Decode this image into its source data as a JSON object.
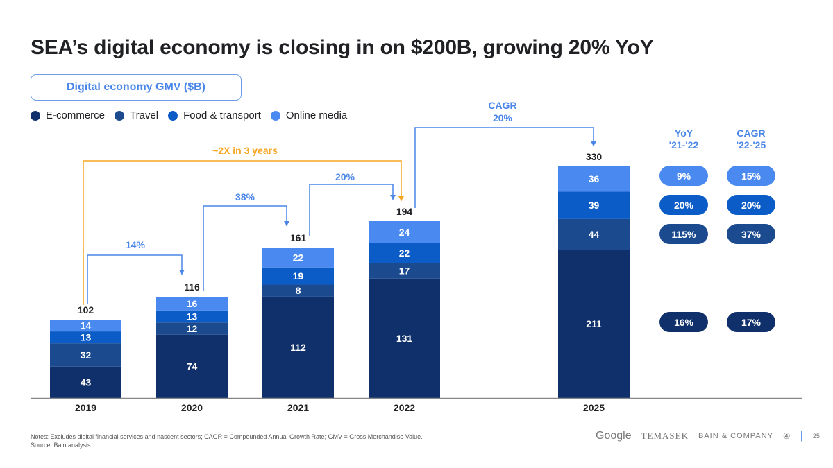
{
  "title": "SEA’s digital economy is closing in on $200B, growing 20% YoY",
  "subtitle": "Digital economy GMV ($B)",
  "chart_data": {
    "type": "bar",
    "stacked": true,
    "categories": [
      "2019",
      "2020",
      "2021",
      "2022",
      "2025"
    ],
    "series": [
      {
        "name": "E-commerce",
        "color": "#10306b",
        "values": [
          43,
          74,
          112,
          131,
          211
        ]
      },
      {
        "name": "Travel",
        "color": "#1b4a8f",
        "values": [
          32,
          12,
          8,
          17,
          44
        ]
      },
      {
        "name": "Food & transport",
        "color": "#0b5cc7",
        "values": [
          13,
          13,
          19,
          22,
          39
        ]
      },
      {
        "name": "Online media",
        "color": "#4a8af0",
        "values": [
          14,
          16,
          22,
          24,
          36
        ]
      }
    ],
    "totals": [
      "102",
      "116",
      "161",
      "194",
      "330"
    ],
    "legend_position": "top-left",
    "grid": false,
    "annotations": [
      {
        "label": "14%",
        "from": "2019",
        "to": "2020"
      },
      {
        "label": "38%",
        "from": "2020",
        "to": "2021"
      },
      {
        "label": "20%",
        "from": "2021",
        "to": "2022"
      },
      {
        "label": "~2X in 3 years",
        "from": "2019",
        "to": "2022",
        "color": "#f5a623"
      },
      {
        "label_line1": "CAGR",
        "label_line2": "20%",
        "from": "2022",
        "to": "2025"
      }
    ]
  },
  "growth_table": {
    "yoy_header": [
      "YoY",
      "'21-'22"
    ],
    "cagr_header": [
      "CAGR",
      "'22-'25"
    ],
    "rows": [
      {
        "segment": "Online media",
        "yoy": "9%",
        "cagr": "15%",
        "color": "#4a8af0"
      },
      {
        "segment": "Food & transport",
        "yoy": "20%",
        "cagr": "20%",
        "color": "#0b5cc7"
      },
      {
        "segment": "Travel",
        "yoy": "115%",
        "cagr": "37%",
        "color": "#1b4a8f"
      },
      {
        "segment": "E-commerce",
        "yoy": "16%",
        "cagr": "17%",
        "color": "#10306b"
      }
    ]
  },
  "footer": {
    "notes": "Notes: Excludes digital financial services and nascent sectors; CAGR = Compounded Annual Growth Rate; GMV = Gross Merchandise Value.",
    "source": "Source: Bain analysis",
    "logos": [
      "Google",
      "TEMASEK",
      "BAIN & COMPANY"
    ],
    "page_number": "25"
  }
}
